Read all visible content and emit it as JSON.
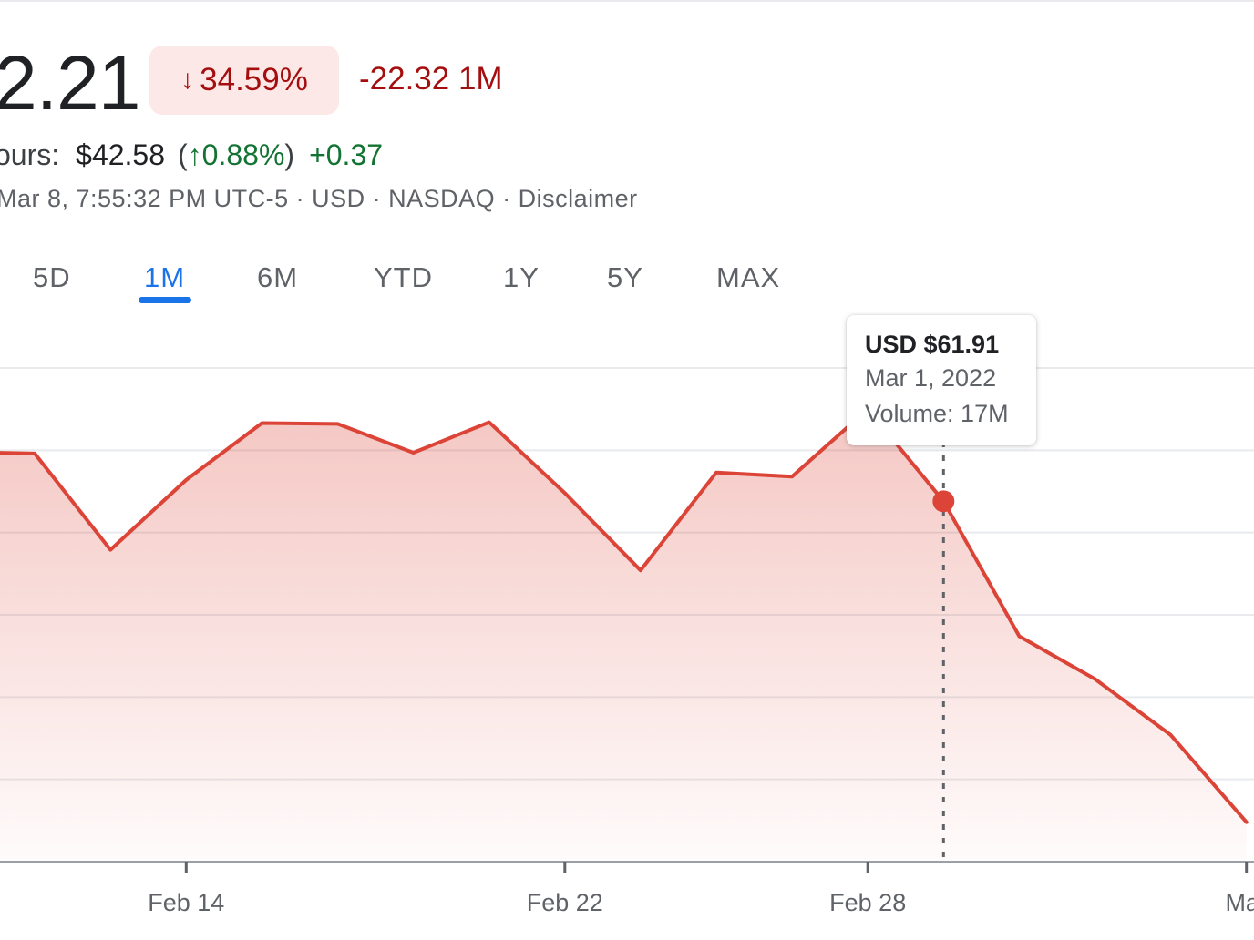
{
  "quote": {
    "price": "2.21",
    "change_percent": "34.59%",
    "change_arrow_icon": "arrow-down-icon",
    "change_abs": "-22.32 1M",
    "after_hours_label": "ours:",
    "after_hours_price": "$42.58",
    "after_hours_paren_open": "(",
    "after_hours_arrow": "↑",
    "after_hours_percent": "0.88%",
    "after_hours_paren_close": ")",
    "after_hours_abs": "+0.37",
    "meta": {
      "timestamp": "Mar 8, 7:55:32 PM UTC-5",
      "currency": "USD",
      "exchange": "NASDAQ",
      "disclaimer": "Disclaimer"
    }
  },
  "colors": {
    "negative": "#a50e0e",
    "positive": "#137333",
    "line": "#db4437",
    "active_tab": "#1a73e8"
  },
  "range_tabs": {
    "items": [
      "5D",
      "1M",
      "6M",
      "YTD",
      "1Y",
      "5Y",
      "MAX"
    ],
    "active": "1M"
  },
  "tooltip": {
    "price": "USD $61.91",
    "date": "Mar 1, 2022",
    "volume": "Volume: 17M"
  },
  "chart_data": {
    "type": "area",
    "xlabel": "",
    "ylabel": "",
    "ylim": [
      0,
      6
    ],
    "grid": true,
    "x_ticks": [
      "Feb 14",
      "Feb 22",
      "Feb 28",
      "Mar"
    ],
    "x": [
      "Feb 9",
      "Feb 10",
      "Feb 11",
      "Feb 14",
      "Feb 15",
      "Feb 16",
      "Feb 17",
      "Feb 18",
      "Feb 22",
      "Feb 23",
      "Feb 24",
      "Feb 25",
      "Feb 28",
      "Mar 1",
      "Mar 2",
      "Mar 3",
      "Mar 4",
      "Mar 7"
    ],
    "series": [
      {
        "values": [
          4.98,
          4.96,
          3.79,
          4.64,
          5.33,
          5.32,
          4.97,
          5.34,
          4.48,
          3.54,
          4.73,
          4.68,
          5.5,
          4.38,
          2.74,
          2.22,
          1.54,
          0.48
        ]
      }
    ],
    "y_units": "gridline intervals (axis values not shown)",
    "hover_point": {
      "x": "Mar 1",
      "price": "USD $61.91"
    }
  }
}
